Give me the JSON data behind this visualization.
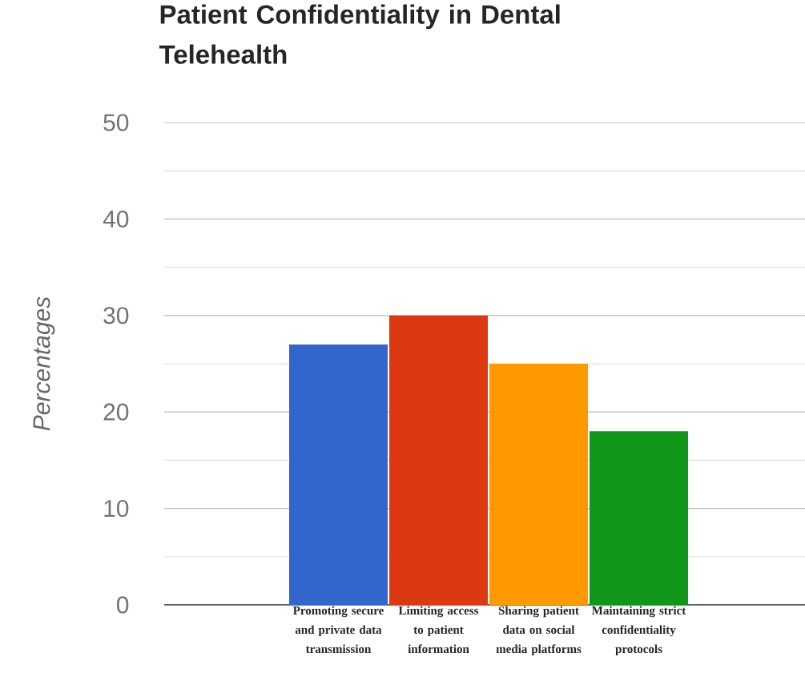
{
  "chart_data": {
    "type": "bar",
    "title": "Patient Confidentiality in Dental Telehealth",
    "ylabel": "Percentages",
    "categories": [
      "Promoting secure and private data transmission",
      "Limiting access to patient information",
      "Sharing patient data on social media platforms",
      "Maintaining strict confidentiality protocols"
    ],
    "values": [
      27,
      30,
      25,
      18
    ],
    "colors": [
      "#3366cc",
      "#dc3912",
      "#ff9900",
      "#109618"
    ],
    "ylim": [
      0,
      50
    ],
    "yticks": [
      0,
      10,
      20,
      30,
      40,
      50
    ],
    "grid": "y"
  }
}
